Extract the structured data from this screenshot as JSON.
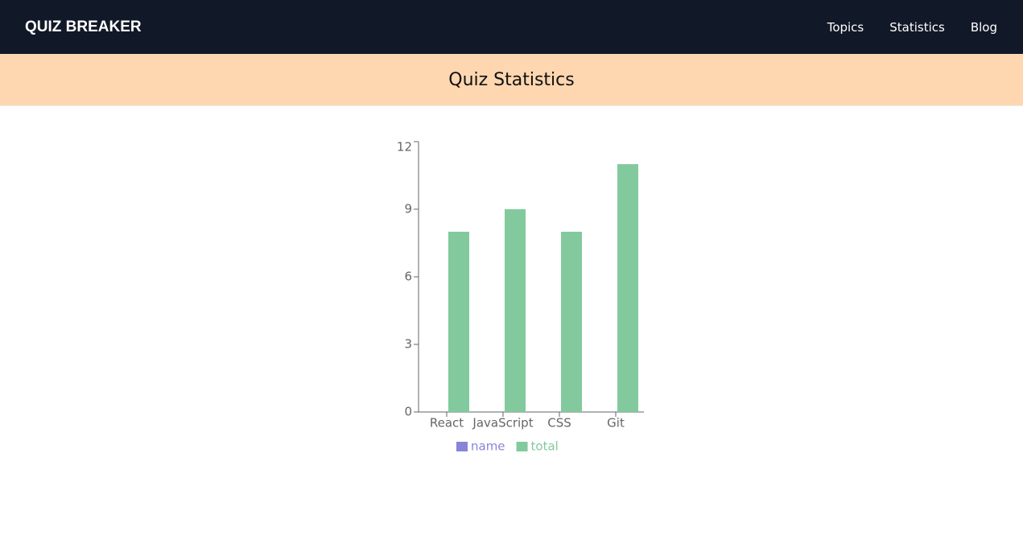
{
  "nav": {
    "brand": "QUIZ BREAKER",
    "links": [
      "Topics",
      "Statistics",
      "Blog"
    ]
  },
  "header": {
    "title": "Quiz Statistics"
  },
  "chart_data": {
    "type": "bar",
    "categories": [
      "React",
      "JavaScript",
      "CSS",
      "Git"
    ],
    "series": [
      {
        "name": "name",
        "color": "#8884d8",
        "values": [
          null,
          null,
          null,
          null
        ]
      },
      {
        "name": "total",
        "color": "#82ca9d",
        "values": [
          8,
          9,
          8,
          11
        ]
      }
    ],
    "ylim": [
      0,
      12
    ],
    "yticks": [
      0,
      3,
      6,
      9,
      12
    ],
    "legend": "bottom"
  }
}
